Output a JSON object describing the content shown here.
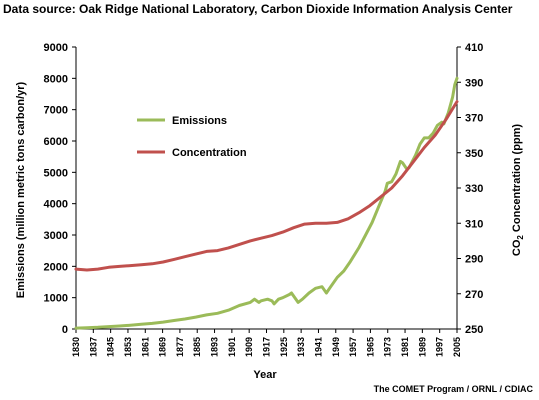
{
  "header": {
    "source_text": "Data source: Oak Ridge National Laboratory, Carbon Dioxide Information Analysis Center"
  },
  "footer": {
    "credit_text": "The COMET Program / ORNL / CDIAC"
  },
  "colors": {
    "emissions": "#9bbb59",
    "concentration": "#c0504d",
    "axis": "#000000"
  },
  "chart_data": {
    "type": "line",
    "title": "",
    "xlabel": "Year",
    "ylabel": "Emissions (million metric tons carbon/yr)",
    "y2label_main": "CO",
    "y2label_sub": "2",
    "y2label_rest": " Concentration (ppm)",
    "xlim": [
      1830,
      2005
    ],
    "ylim": [
      0,
      9000
    ],
    "y2lim": [
      250,
      410
    ],
    "x_ticks": [
      "1830",
      "1837",
      "1845",
      "1853",
      "1861",
      "1869",
      "1877",
      "1885",
      "1893",
      "1901",
      "1909",
      "1917",
      "1925",
      "1933",
      "1941",
      "1949",
      "1957",
      "1965",
      "1973",
      "1981",
      "1989",
      "1997",
      "2005"
    ],
    "y_ticks": [
      "0",
      "1000",
      "2000",
      "3000",
      "4000",
      "5000",
      "6000",
      "7000",
      "8000",
      "9000"
    ],
    "y2_ticks": [
      "250",
      "270",
      "290",
      "310",
      "330",
      "350",
      "370",
      "390",
      "410"
    ],
    "legend_position": "upper-left inside plot",
    "series": [
      {
        "name": "Emissions",
        "axis": "left",
        "points": [
          [
            1830,
            28
          ],
          [
            1835,
            40
          ],
          [
            1840,
            55
          ],
          [
            1845,
            75
          ],
          [
            1850,
            95
          ],
          [
            1855,
            120
          ],
          [
            1860,
            150
          ],
          [
            1865,
            180
          ],
          [
            1870,
            220
          ],
          [
            1875,
            270
          ],
          [
            1880,
            320
          ],
          [
            1885,
            380
          ],
          [
            1890,
            450
          ],
          [
            1895,
            500
          ],
          [
            1900,
            600
          ],
          [
            1905,
            750
          ],
          [
            1910,
            850
          ],
          [
            1912,
            950
          ],
          [
            1914,
            850
          ],
          [
            1915,
            900
          ],
          [
            1918,
            950
          ],
          [
            1920,
            900
          ],
          [
            1921,
            800
          ],
          [
            1923,
            950
          ],
          [
            1925,
            1000
          ],
          [
            1928,
            1100
          ],
          [
            1929,
            1150
          ],
          [
            1931,
            950
          ],
          [
            1932,
            850
          ],
          [
            1934,
            950
          ],
          [
            1937,
            1150
          ],
          [
            1940,
            1300
          ],
          [
            1943,
            1350
          ],
          [
            1945,
            1150
          ],
          [
            1947,
            1350
          ],
          [
            1950,
            1650
          ],
          [
            1953,
            1850
          ],
          [
            1956,
            2150
          ],
          [
            1960,
            2600
          ],
          [
            1963,
            3000
          ],
          [
            1966,
            3400
          ],
          [
            1969,
            3900
          ],
          [
            1972,
            4400
          ],
          [
            1973,
            4650
          ],
          [
            1975,
            4700
          ],
          [
            1977,
            4950
          ],
          [
            1979,
            5350
          ],
          [
            1980,
            5300
          ],
          [
            1982,
            5100
          ],
          [
            1983,
            5150
          ],
          [
            1986,
            5550
          ],
          [
            1988,
            5900
          ],
          [
            1990,
            6100
          ],
          [
            1992,
            6100
          ],
          [
            1994,
            6250
          ],
          [
            1996,
            6500
          ],
          [
            1998,
            6600
          ],
          [
            1999,
            6550
          ],
          [
            2001,
            6900
          ],
          [
            2003,
            7400
          ],
          [
            2004,
            7800
          ],
          [
            2005,
            8000
          ]
        ]
      },
      {
        "name": "Concentration",
        "axis": "right",
        "points": [
          [
            1830,
            284
          ],
          [
            1835,
            283.5
          ],
          [
            1840,
            284
          ],
          [
            1845,
            285
          ],
          [
            1850,
            285.5
          ],
          [
            1855,
            286
          ],
          [
            1860,
            286.5
          ],
          [
            1865,
            287
          ],
          [
            1870,
            288
          ],
          [
            1875,
            289.5
          ],
          [
            1880,
            291
          ],
          [
            1885,
            292.5
          ],
          [
            1890,
            294
          ],
          [
            1895,
            294.5
          ],
          [
            1900,
            296
          ],
          [
            1905,
            298
          ],
          [
            1910,
            300
          ],
          [
            1915,
            301.5
          ],
          [
            1920,
            303
          ],
          [
            1925,
            305
          ],
          [
            1930,
            307.5
          ],
          [
            1935,
            309.5
          ],
          [
            1940,
            310
          ],
          [
            1945,
            310
          ],
          [
            1950,
            310.5
          ],
          [
            1955,
            312.5
          ],
          [
            1960,
            316
          ],
          [
            1965,
            320
          ],
          [
            1970,
            325
          ],
          [
            1975,
            330
          ],
          [
            1980,
            337
          ],
          [
            1985,
            345
          ],
          [
            1990,
            353
          ],
          [
            1995,
            360
          ],
          [
            2000,
            369
          ],
          [
            2005,
            379
          ]
        ]
      }
    ]
  }
}
